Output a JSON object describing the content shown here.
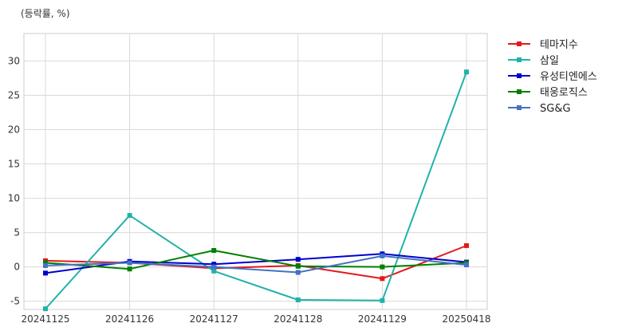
{
  "chart_data": {
    "type": "line",
    "ylabel": "(등락률, %)",
    "categories": [
      "20241125",
      "20241126",
      "20241127",
      "20241128",
      "20241129",
      "20250418"
    ],
    "ylim": [
      -6.2,
      34
    ],
    "yticks": [
      -5,
      0,
      5,
      10,
      15,
      20,
      25,
      30
    ],
    "grid": true,
    "legend_position": "right-top-outside",
    "series": [
      {
        "name": "테마지수",
        "color": "#e31a1c",
        "values": [
          0.9,
          0.6,
          -0.2,
          0.2,
          -1.7,
          3.1
        ]
      },
      {
        "name": "삼일",
        "color": "#20b2aa",
        "values": [
          -6.1,
          7.5,
          -0.6,
          -4.8,
          -4.9,
          28.4
        ]
      },
      {
        "name": "유성티엔에스",
        "color": "#0000cd",
        "values": [
          -0.9,
          0.8,
          0.4,
          1.1,
          1.9,
          0.7
        ]
      },
      {
        "name": "태웅로직스",
        "color": "#008000",
        "values": [
          0.6,
          -0.3,
          2.4,
          0.1,
          0.0,
          0.6
        ]
      },
      {
        "name": "SG&G",
        "color": "#4472c4",
        "values": [
          0.2,
          0.6,
          0.0,
          -0.8,
          1.6,
          0.3
        ]
      }
    ]
  }
}
